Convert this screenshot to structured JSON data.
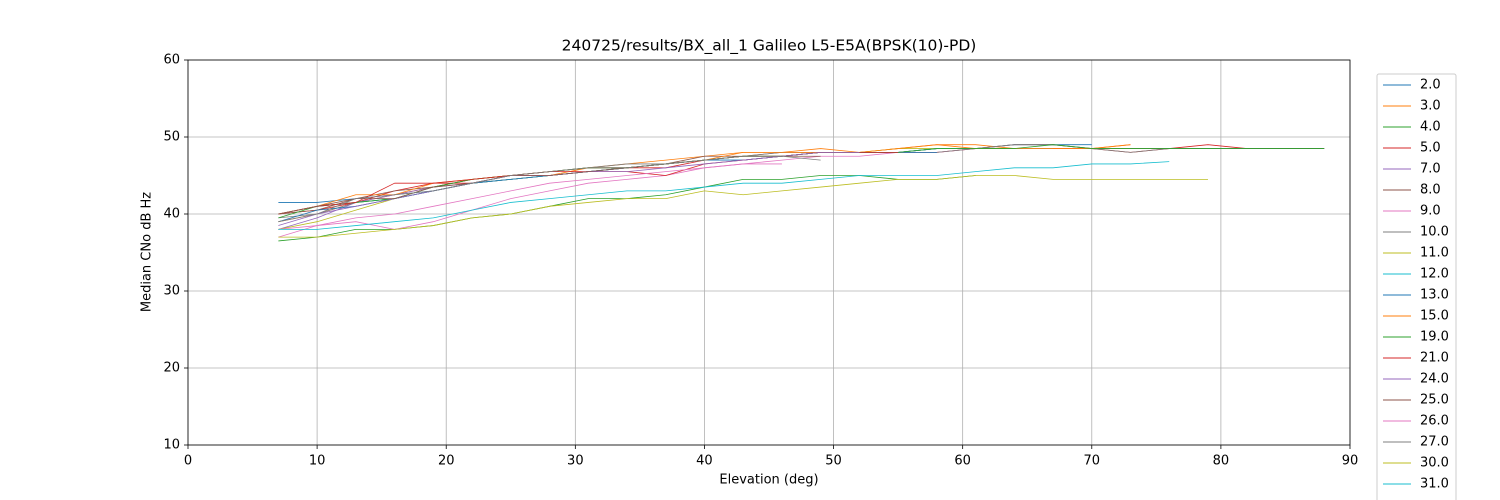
{
  "chart_data": {
    "type": "line",
    "title": "240725/results/BX_all_1 Galileo L5-E5A(BPSK(10)-PD)",
    "xlabel": "Elevation (deg)",
    "ylabel": "Median CNo dB Hz",
    "xlim": [
      0,
      90
    ],
    "ylim": [
      10,
      60
    ],
    "xticks": [
      0,
      10,
      20,
      30,
      40,
      50,
      60,
      70,
      80,
      90
    ],
    "yticks": [
      10,
      20,
      30,
      40,
      50,
      60
    ],
    "grid": true,
    "legend": "outside-right",
    "x": [
      7,
      10,
      13,
      16,
      19,
      22,
      25,
      28,
      31,
      34,
      37,
      40,
      43,
      46,
      49,
      52,
      55,
      58,
      61,
      64,
      67,
      70,
      73,
      76,
      79,
      82,
      85,
      88
    ],
    "series": [
      {
        "name": "2.0",
        "color": "#1f77b4",
        "values": [
          41.5,
          41.5,
          42,
          42.5,
          43,
          44,
          44.5,
          45,
          45.5,
          46,
          46.5,
          47,
          47.5,
          47.5,
          48,
          48,
          48,
          48.5,
          48.5,
          49,
          49,
          49,
          null,
          null,
          null,
          null,
          null,
          null
        ]
      },
      {
        "name": "3.0",
        "color": "#ff7f0e",
        "values": [
          39,
          40,
          41.5,
          42.5,
          43.5,
          44.5,
          45,
          45.5,
          46,
          46.5,
          47,
          47.5,
          48,
          48,
          48.5,
          48,
          48.5,
          49,
          49,
          48.5,
          48.5,
          48.5,
          49,
          null,
          null,
          null,
          null,
          null
        ]
      },
      {
        "name": "4.0",
        "color": "#2ca02c",
        "values": [
          36.5,
          37,
          38,
          38,
          38.5,
          39.5,
          40,
          41,
          42,
          42,
          42.5,
          43.5,
          44.5,
          44.5,
          45,
          45,
          44.5,
          44.5,
          45,
          null,
          null,
          null,
          null,
          null,
          null,
          null,
          null,
          null
        ]
      },
      {
        "name": "5.0",
        "color": "#d62728",
        "values": [
          40,
          40.5,
          41.5,
          43,
          44,
          44,
          44.5,
          45,
          45.5,
          46,
          46,
          47,
          47.5,
          47.5,
          48,
          48,
          48,
          48,
          48.5,
          48.5,
          48.5,
          48.5,
          48,
          48.5,
          49,
          48.5,
          48.5,
          48.5
        ]
      },
      {
        "name": "7.0",
        "color": "#9467bd",
        "values": [
          38,
          39.5,
          41.5,
          42.5,
          43.5,
          44,
          45,
          45,
          45.5,
          46,
          46.5,
          47,
          47,
          47.5,
          48,
          48,
          48,
          48.5,
          48.5,
          48.5,
          48.5,
          null,
          null,
          null,
          null,
          null,
          null,
          null
        ]
      },
      {
        "name": "8.0",
        "color": "#8c564b",
        "values": [
          40,
          40.5,
          42,
          43,
          43.5,
          44.5,
          45,
          45.5,
          46,
          46,
          46.5,
          47.5,
          47.5,
          48,
          48,
          48,
          48,
          48.5,
          48.5,
          49,
          49,
          48.5,
          48.5,
          48.5,
          48.5,
          48.5,
          48.5,
          48.5
        ]
      },
      {
        "name": "9.0",
        "color": "#e377c2",
        "values": [
          37,
          38.5,
          39,
          38,
          39,
          40.5,
          42,
          43,
          44,
          44.5,
          45,
          46,
          46.5,
          47,
          47.5,
          47.5,
          48,
          48,
          48.5,
          48.5,
          null,
          null,
          null,
          null,
          null,
          null,
          null,
          null
        ]
      },
      {
        "name": "10.0",
        "color": "#7f7f7f",
        "values": [
          39.5,
          40,
          41.5,
          42,
          43,
          44,
          45,
          45.5,
          46,
          46.5,
          46.5,
          47,
          47.5,
          48,
          48,
          48,
          48,
          48,
          48.5,
          49,
          49,
          48.5,
          48,
          48.5,
          48.5,
          48.5,
          48.5,
          48.5
        ]
      },
      {
        "name": "11.0",
        "color": "#bcbd22",
        "values": [
          38,
          39,
          40.5,
          42,
          43,
          44,
          44.5,
          45,
          45.5,
          46,
          46.5,
          47,
          47.5,
          47.5,
          48,
          48,
          48.5,
          48.5,
          48.5,
          48.5,
          null,
          null,
          null,
          null,
          null,
          null,
          null,
          null
        ]
      },
      {
        "name": "12.0",
        "color": "#17becf",
        "values": [
          40,
          41,
          41.5,
          42,
          43,
          44,
          44.5,
          45,
          45.5,
          46,
          46.5,
          47,
          47,
          47.5,
          48,
          48,
          48,
          48.5,
          48.5,
          48.5,
          48.5,
          null,
          null,
          null,
          null,
          null,
          null,
          null
        ]
      },
      {
        "name": "13.0",
        "color": "#1f77b4",
        "values": [
          39,
          40.5,
          41,
          42,
          43,
          44,
          44.5,
          45,
          45.5,
          46,
          46.5,
          47,
          47,
          47.5,
          48,
          48,
          48,
          48,
          null,
          null,
          null,
          null,
          null,
          null,
          null,
          null,
          null,
          null
        ]
      },
      {
        "name": "15.0",
        "color": "#ff7f0e",
        "values": [
          40,
          41,
          42.5,
          42.5,
          44,
          44.5,
          45,
          45,
          46,
          46,
          46.5,
          47,
          48,
          48,
          48,
          48,
          48.5,
          49,
          48.5,
          48.5,
          48.5,
          48.5,
          49,
          null,
          null,
          null,
          null,
          null
        ]
      },
      {
        "name": "19.0",
        "color": "#2ca02c",
        "values": [
          39.5,
          41,
          41.5,
          42,
          43.5,
          44.5,
          45,
          45.5,
          46,
          46,
          46.5,
          47,
          47.5,
          47.5,
          48,
          48,
          48,
          48.5,
          48.5,
          48.5,
          49,
          48.5,
          48.5,
          48.5,
          48.5,
          48.5,
          48.5,
          48.5
        ]
      },
      {
        "name": "21.0",
        "color": "#d62728",
        "values": [
          40,
          41,
          41.5,
          44,
          44,
          44.5,
          45,
          45.5,
          45.5,
          45.5,
          45,
          46.5,
          47,
          47.5,
          48,
          48,
          48,
          null,
          null,
          null,
          null,
          null,
          null,
          null,
          null,
          null,
          null,
          null
        ]
      },
      {
        "name": "24.0",
        "color": "#9467bd",
        "values": [
          38.5,
          40,
          41,
          42,
          43,
          44,
          45,
          45,
          45.5,
          45.5,
          46,
          46.5,
          47,
          47.5,
          48,
          48,
          null,
          null,
          null,
          null,
          null,
          null,
          null,
          null,
          null,
          null,
          null,
          null
        ]
      },
      {
        "name": "25.0",
        "color": "#8c564b",
        "values": [
          40,
          41,
          42,
          42,
          43.5,
          44,
          45,
          45,
          45.5,
          46,
          46.5,
          47,
          47.5,
          47.5,
          47.5,
          null,
          null,
          null,
          null,
          null,
          null,
          null,
          null,
          null,
          null,
          null,
          null,
          null
        ]
      },
      {
        "name": "26.0",
        "color": "#e377c2",
        "values": [
          38,
          38.5,
          39.5,
          40,
          41,
          42,
          43,
          44,
          44.5,
          45,
          45.5,
          46,
          46.5,
          46.5,
          null,
          null,
          null,
          null,
          null,
          null,
          null,
          null,
          null,
          null,
          null,
          null,
          null,
          null
        ]
      },
      {
        "name": "27.0",
        "color": "#7f7f7f",
        "values": [
          39,
          40,
          42,
          42.5,
          43,
          44,
          45,
          45.5,
          46,
          46,
          46.5,
          47,
          47.5,
          47.5,
          47,
          null,
          null,
          null,
          null,
          null,
          null,
          null,
          null,
          null,
          null,
          null,
          null,
          null
        ]
      },
      {
        "name": "30.0",
        "color": "#bcbd22",
        "values": [
          37,
          37,
          37.5,
          38,
          38.5,
          39.5,
          40,
          41,
          41.5,
          42,
          42,
          43,
          42.5,
          43,
          43.5,
          44,
          44.5,
          44.5,
          45,
          45,
          44.5,
          44.5,
          44.5,
          44.5,
          44.5,
          null,
          null,
          null
        ]
      },
      {
        "name": "31.0",
        "color": "#17becf",
        "values": [
          38,
          38,
          38.5,
          39,
          39.5,
          40.5,
          41.5,
          42,
          42.5,
          43,
          43,
          43.5,
          44,
          44,
          44.5,
          45,
          45,
          45,
          45.5,
          46,
          46,
          46.5,
          46.5,
          46.8,
          null,
          null,
          null,
          null
        ]
      }
    ]
  }
}
